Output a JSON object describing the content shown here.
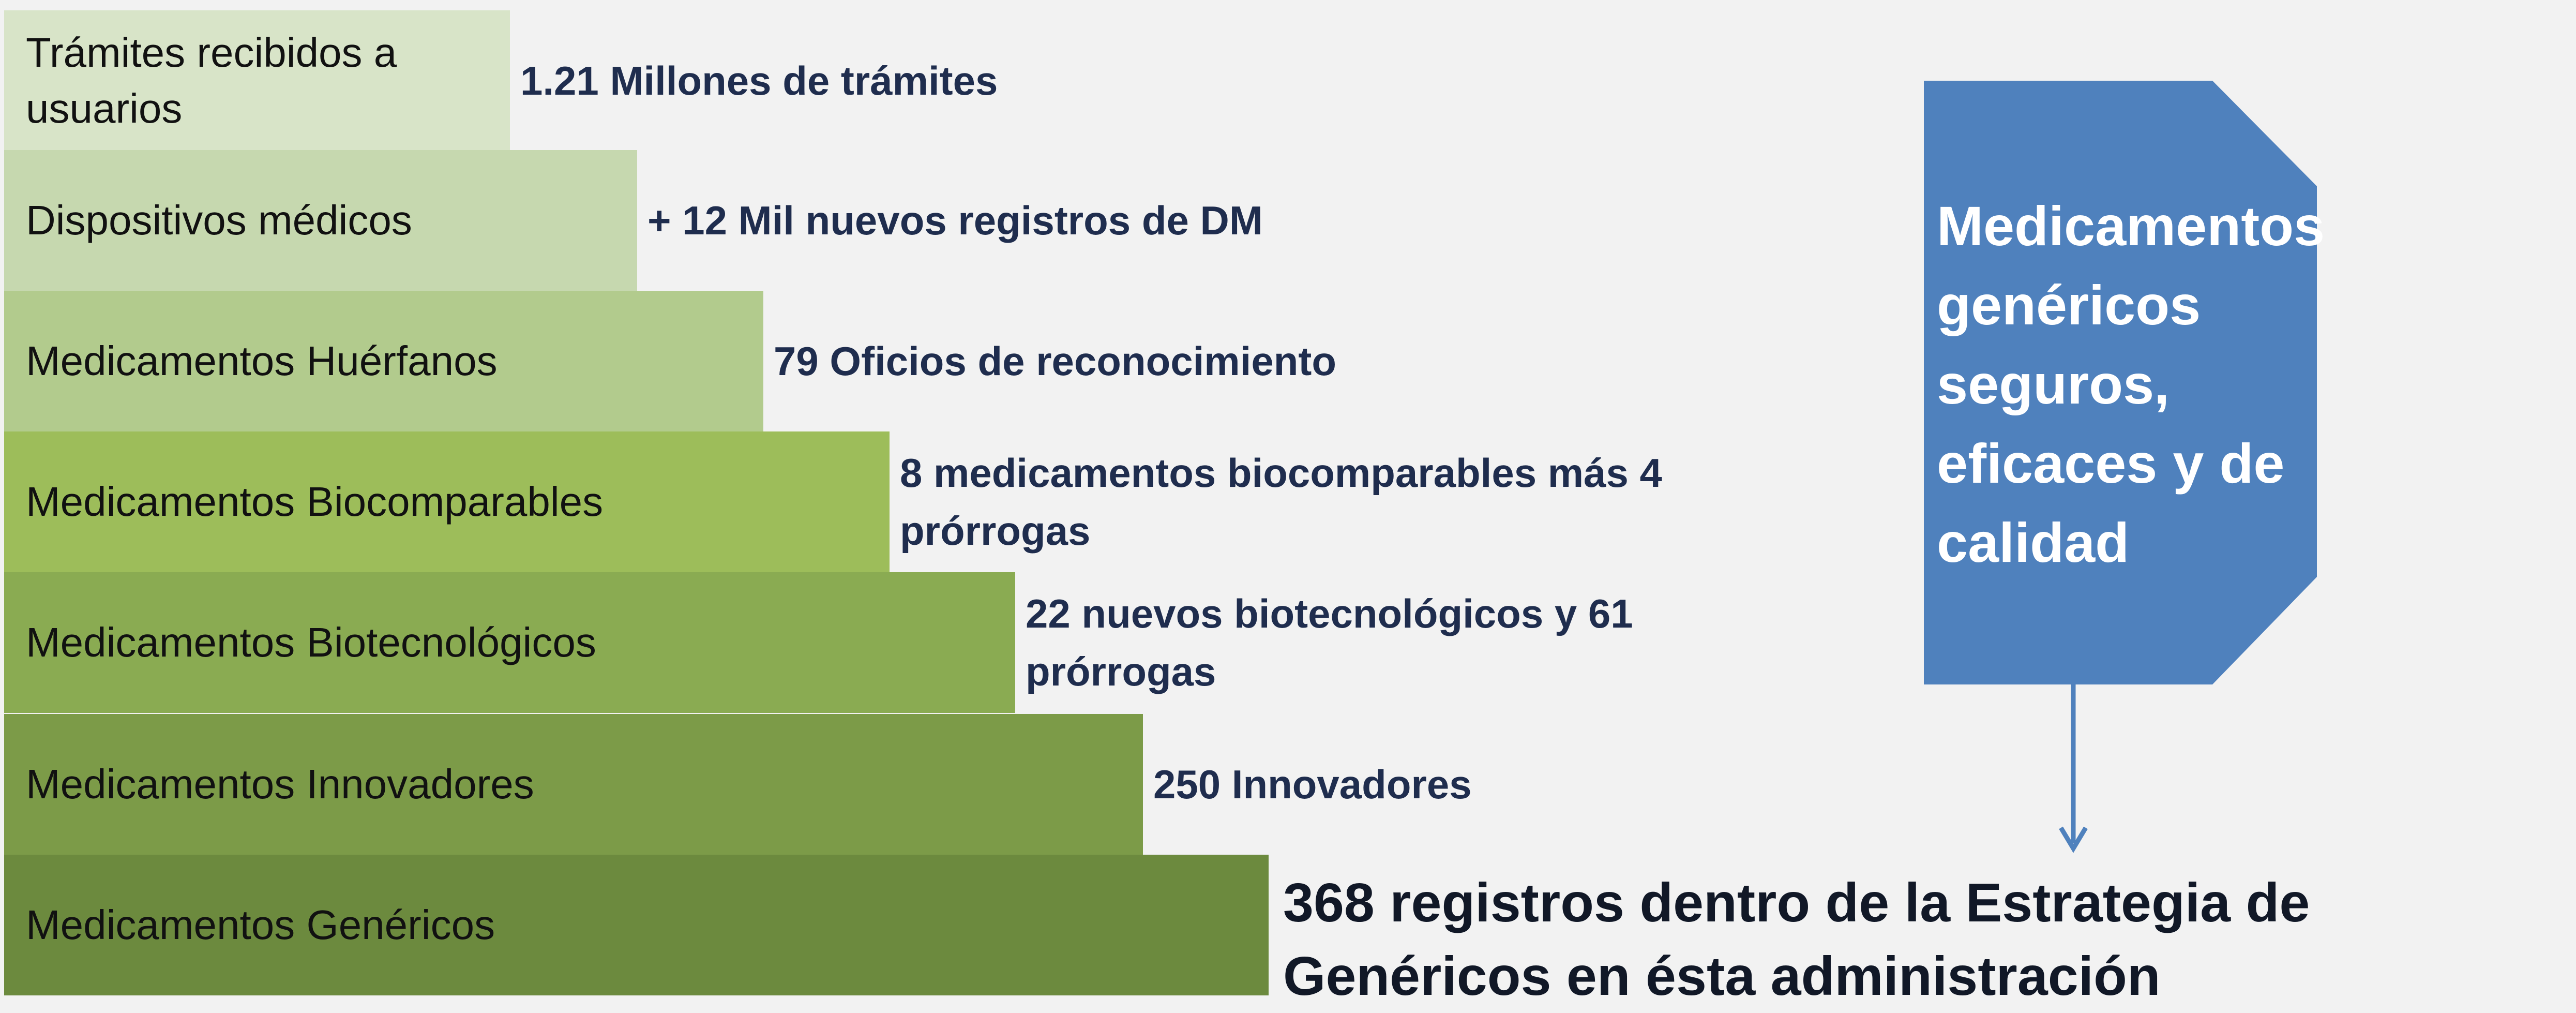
{
  "rows": [
    {
      "label": "Trámites recibidos a usuarios",
      "detail": "1.21 Millones de trámites",
      "color": "#d8e4c8"
    },
    {
      "label": "Dispositivos médicos",
      "detail": "+ 12 Mil nuevos registros de DM",
      "color": "#c6d8af"
    },
    {
      "label": "Medicamentos Huérfanos",
      "detail": "79 Oficios de reconocimiento",
      "color": "#b2cb8d"
    },
    {
      "label": "Medicamentos Biocomparables",
      "detail": "8 medicamentos biocomparables más 4 prórrogas",
      "color": "#9dbd5a"
    },
    {
      "label": "Medicamentos Biotecnológicos",
      "detail": "22 nuevos biotecnológicos  y 61 prórrogas",
      "color": "#8aab52"
    },
    {
      "label": "Medicamentos Innovadores",
      "detail": "250 Innovadores",
      "color": "#7c9b48"
    },
    {
      "label": "Medicamentos Genéricos",
      "detail": "368 registros dentro de la Estrategia de Genéricos en ésta administración",
      "color": "#6c8a3e"
    }
  ],
  "callout": {
    "text": "Medicamentos genéricos seguros, eficaces y de calidad",
    "color": "#4f81bd"
  }
}
